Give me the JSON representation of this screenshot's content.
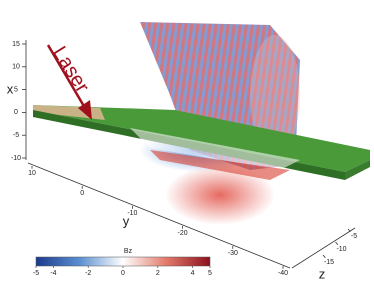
{
  "chart_data": {
    "type": "volume3d",
    "annotation": "Laser",
    "xlabel": "x",
    "ylabel": "y",
    "zlabel": "z",
    "xticks": [
      15,
      10,
      5,
      0,
      -5,
      -10
    ],
    "yticks": [
      10,
      0,
      -10,
      -20,
      -30,
      -40
    ],
    "zticks": [
      -15,
      -10,
      -5
    ],
    "colorbar": {
      "label": "Bz",
      "clim": [
        -5,
        5
      ],
      "ticks": [
        -5,
        -4,
        -2,
        0,
        2,
        4,
        5
      ],
      "colors": [
        "#1b3b8c",
        "#5b8fd0",
        "#ffffff",
        "#e27a6a",
        "#8c1020"
      ]
    }
  }
}
